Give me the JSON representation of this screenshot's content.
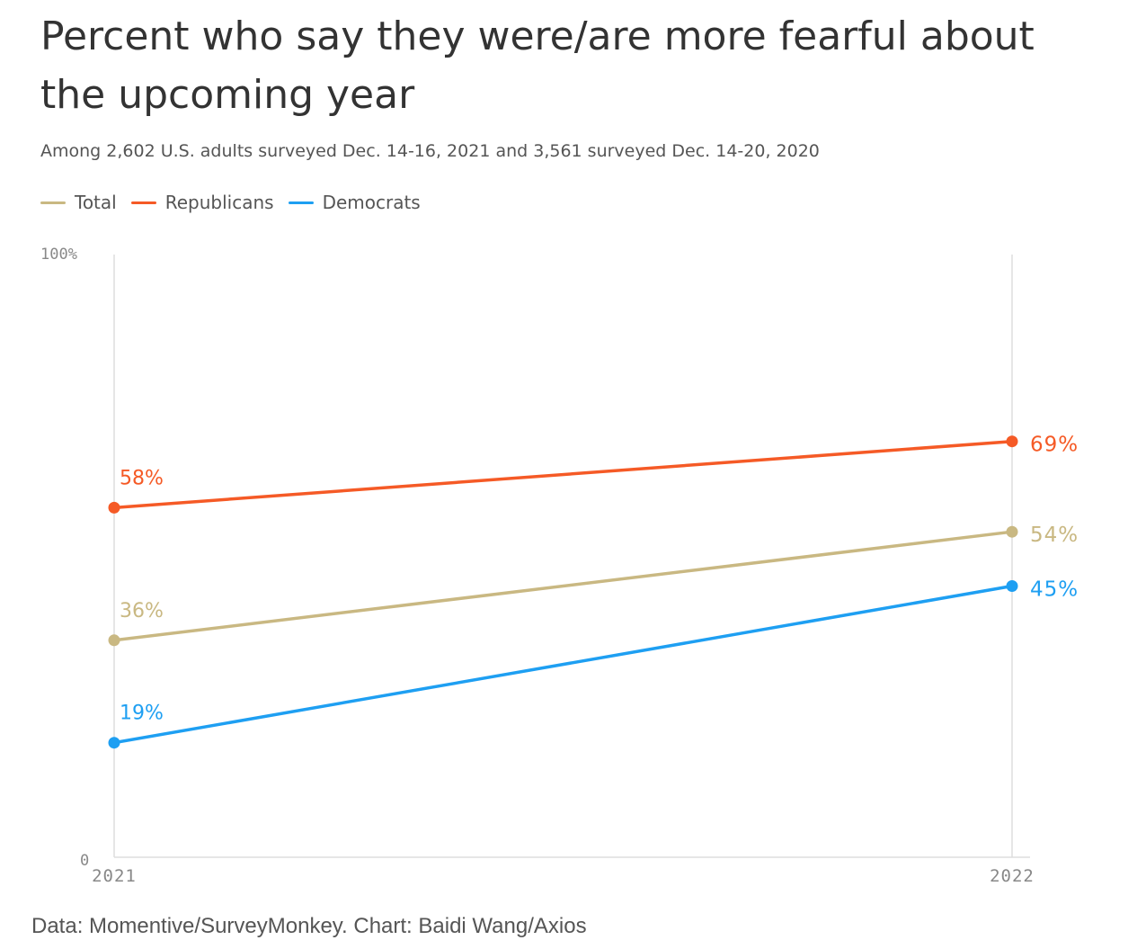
{
  "title": "Percent who say they were/are more fearful about the upcoming year",
  "subtitle": "Among 2,602 U.S. adults surveyed Dec. 14-16, 2021 and 3,561 surveyed Dec. 14-20, 2020",
  "source": "Data: Momentive/SurveyMonkey. Chart: Baidi Wang/Axios",
  "colors": {
    "Total": "#c9b882",
    "Republicans": "#f55a26",
    "Democrats": "#1e9ff2",
    "axis": "#dddddd",
    "tick_text": "#888888"
  },
  "chart_data": {
    "type": "line",
    "x": [
      "2021",
      "2022"
    ],
    "ylim": [
      0,
      100
    ],
    "y_ticks": [
      "0",
      "100%"
    ],
    "legend_position": "top-left",
    "grid": false,
    "series": [
      {
        "name": "Total",
        "values": [
          36,
          54
        ],
        "labels": [
          "36%",
          "54%"
        ]
      },
      {
        "name": "Republicans",
        "values": [
          58,
          69
        ],
        "labels": [
          "58%",
          "69%"
        ]
      },
      {
        "name": "Democrats",
        "values": [
          19,
          45
        ],
        "labels": [
          "19%",
          "45%"
        ]
      }
    ]
  }
}
